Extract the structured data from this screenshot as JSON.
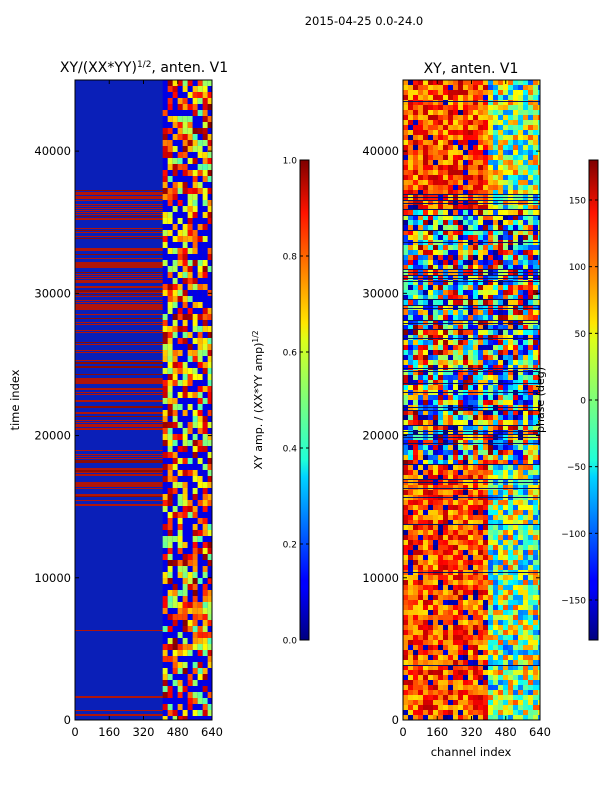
{
  "figure": {
    "suptitle": "2015-04-25 0.0-24.0"
  },
  "chart_data": [
    {
      "type": "heatmap",
      "title": "XY/(XX*YY)^(1/2), anten. V1",
      "title_main": "XY/(XX*YY)",
      "title_sup": "1/2",
      "title_tail": ", anten. V1",
      "xlabel": "",
      "ylabel": "time index",
      "xlim": [
        0,
        640
      ],
      "ylim": [
        0,
        45000
      ],
      "xticks": [
        "0",
        "160",
        "320",
        "480",
        "640"
      ],
      "yticks": [
        "0",
        "10000",
        "20000",
        "30000",
        "40000"
      ],
      "colorbar": {
        "label_main": "XY amp. / (XX*YY amp)",
        "label_sup": "1/2",
        "range": [
          0.0,
          1.0
        ],
        "ticks": [
          "0.0",
          "0.2",
          "0.4",
          "0.6",
          "0.8",
          "1.0"
        ]
      }
    },
    {
      "type": "heatmap",
      "title": "XY, anten. V1",
      "xlabel": "channel index",
      "ylabel": "",
      "xlim": [
        0,
        640
      ],
      "ylim": [
        0,
        45000
      ],
      "xticks": [
        "0",
        "160",
        "320",
        "480",
        "640"
      ],
      "yticks": [
        "0",
        "10000",
        "20000",
        "30000",
        "40000"
      ],
      "colorbar": {
        "label": "phase (deg)",
        "range": [
          -180,
          180
        ],
        "ticks": [
          "−150",
          "−100",
          "−50",
          "0",
          "50",
          "100",
          "150"
        ]
      }
    }
  ]
}
